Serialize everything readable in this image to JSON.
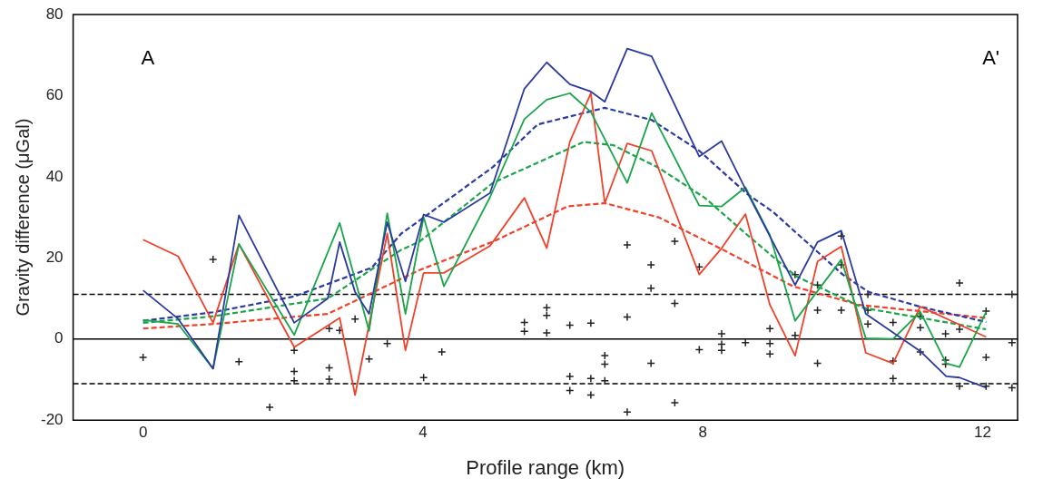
{
  "chart_data": {
    "type": "line",
    "xlabel": "Profile range (km)",
    "ylabel": "Gravity difference (μGal)",
    "annotations": [
      "A",
      "A'"
    ],
    "xlim": [
      -1,
      12.5
    ],
    "ylim": [
      -20,
      80
    ],
    "xticks": [
      0,
      4,
      8,
      12
    ],
    "yticks": [
      -20,
      0,
      20,
      40,
      60,
      80
    ],
    "grid": false,
    "legend": false,
    "ref_lines": [
      {
        "axis": "y",
        "value": 0,
        "color": "#000000",
        "line_style": "solid"
      },
      {
        "axis": "y",
        "value": 11,
        "color": "#000000",
        "line_style": "dashed"
      },
      {
        "axis": "y",
        "value": -11,
        "color": "#000000",
        "line_style": "dashed"
      }
    ],
    "series": [
      {
        "type": "line",
        "color": "#2b3aa0",
        "line_style": "solid",
        "marker": "none",
        "x": [
          0,
          0.5,
          1,
          1.37,
          2.16,
          2.64,
          2.81,
          3.03,
          3.23,
          3.49,
          3.75,
          4.01,
          4.3,
          4.96,
          5.45,
          5.77,
          6.1,
          6.4,
          6.6,
          6.92,
          7.27,
          7.95,
          8.27,
          8.61,
          9.32,
          9.64,
          9.98,
          10.33,
          11.11,
          11.48,
          11.67,
          12.05
        ],
        "values": [
          12,
          5,
          -7.3,
          30.5,
          4,
          10,
          23.9,
          11.6,
          6.2,
          28.8,
          14.2,
          30.7,
          28.8,
          36,
          61.7,
          68.2,
          62.8,
          61,
          58.5,
          71.6,
          69.7,
          45,
          48.8,
          37,
          13.3,
          23.9,
          26.7,
          6.2,
          -3,
          -9.2,
          -9.5,
          -12
        ]
      },
      {
        "type": "line",
        "color": "#1aa54a",
        "line_style": "solid",
        "marker": "none",
        "x": [
          0,
          0.5,
          1,
          1.37,
          2.16,
          2.81,
          3.23,
          3.49,
          3.75,
          4.01,
          4.3,
          4.96,
          5.45,
          5.77,
          6.1,
          6.4,
          6.92,
          7.27,
          7.95,
          8.27,
          8.61,
          8.96,
          9.32,
          9.98,
          10.33,
          10.72,
          11.11,
          11.48,
          11.67,
          12.05
        ],
        "values": [
          4.7,
          3.7,
          -7.3,
          23.4,
          1,
          28.6,
          2,
          31,
          6.2,
          30,
          13,
          35,
          54.2,
          59,
          60.6,
          56,
          38.5,
          55.7,
          32.9,
          32.7,
          37.4,
          25.6,
          4.5,
          19.6,
          0.2,
          0,
          6.7,
          -6,
          -6.9,
          6.7
        ]
      },
      {
        "type": "line",
        "color": "#f0412a",
        "line_style": "solid",
        "marker": "none",
        "x": [
          0,
          0.5,
          1,
          1.37,
          2.16,
          2.81,
          3.03,
          3.49,
          3.75,
          4.01,
          4.3,
          4.96,
          5.45,
          5.77,
          6.1,
          6.4,
          6.6,
          6.92,
          7.27,
          7.95,
          8.27,
          8.61,
          8.96,
          9.32,
          9.64,
          9.98,
          10.33,
          10.72,
          11.11,
          12.05
        ],
        "values": [
          24.5,
          20.4,
          4,
          23.4,
          -2,
          5.2,
          -13.8,
          26,
          -2.8,
          16.3,
          16.3,
          23,
          34.8,
          22.4,
          48.6,
          60.6,
          33.5,
          48.2,
          46.4,
          15.9,
          22.4,
          30.8,
          8.4,
          -4.1,
          19.1,
          22.8,
          -3.4,
          -6,
          8,
          0.5
        ]
      },
      {
        "type": "line",
        "color": "#2b3aa0",
        "line_style": "dashed",
        "marker": "none",
        "x": [
          0,
          1,
          2.16,
          3.27,
          3.69,
          3.95,
          5,
          5.64,
          6.6,
          7.27,
          7.95,
          8.64,
          9,
          10,
          10.37,
          11.1,
          12.05
        ],
        "values": [
          4.5,
          6.6,
          10.5,
          17.6,
          26,
          29.2,
          42.4,
          52.9,
          57,
          54,
          46.4,
          35.7,
          31.4,
          15.9,
          11.6,
          8,
          4.2
        ]
      },
      {
        "type": "line",
        "color": "#1aa54a",
        "line_style": "dashed",
        "marker": "none",
        "x": [
          0,
          1,
          2.64,
          3.69,
          3.95,
          5,
          6.3,
          6.72,
          7.37,
          8.03,
          8.64,
          9.33,
          10.29,
          12.05
        ],
        "values": [
          4,
          5.6,
          10,
          22,
          24,
          38.5,
          48.6,
          47.8,
          42.2,
          34.8,
          25.6,
          15.5,
          7.7,
          2.4
        ]
      },
      {
        "type": "line",
        "color": "#f0412a",
        "line_style": "dashed",
        "marker": "none",
        "x": [
          0,
          1,
          2.64,
          3.95,
          5,
          6.07,
          6.6,
          7.37,
          8.29,
          9.29,
          10.24,
          12.05
        ],
        "values": [
          2.6,
          3.7,
          6.2,
          17,
          24,
          32.7,
          33.5,
          30,
          22,
          13,
          8.4,
          5.2
        ]
      },
      {
        "type": "scatter",
        "color": "#222222",
        "marker": "cross",
        "x": [
          0,
          1,
          1.37,
          1.81,
          2.16,
          2.16,
          2.16,
          2.66,
          2.66,
          2.66,
          2.81,
          3.03,
          3.23,
          3.49,
          4.01,
          4.27,
          5.45,
          5.45,
          5.77,
          5.77,
          5.77,
          6.1,
          6.1,
          6.1,
          6.4,
          6.4,
          6.4,
          6.6,
          6.6,
          6.6,
          6.92,
          6.92,
          6.92,
          7.26,
          7.26,
          7.26,
          7.6,
          7.6,
          7.6,
          7.95,
          7.95,
          8.27,
          8.27,
          8.27,
          8.61,
          8.96,
          8.96,
          8.96,
          9.32,
          9.32,
          9.64,
          9.64,
          9.64,
          9.98,
          9.98,
          9.98,
          10.36,
          10.36,
          10.36,
          10.72,
          10.72,
          10.72,
          11.11,
          11.11,
          11.11,
          11.47,
          11.47,
          11.47,
          11.67,
          11.67,
          11.67,
          12.05,
          12.05,
          12.05,
          12.42,
          12.42,
          12.42
        ],
        "values": [
          -4.5,
          19.6,
          -5.6,
          -16.8,
          -2.8,
          -8,
          -10.3,
          2.6,
          -7.1,
          -9.9,
          2.1,
          4.9,
          -4.9,
          -1.1,
          -9.5,
          -3.2,
          4.1,
          1.9,
          7.7,
          5.8,
          1.5,
          3.4,
          -9.2,
          -12.7,
          3.9,
          -9.7,
          -13.8,
          -4.1,
          -6.2,
          -10.3,
          23.2,
          5.4,
          -18,
          18.3,
          12.5,
          -6,
          24.1,
          8.8,
          -15.7,
          17.8,
          -2.6,
          1.3,
          -1.3,
          -2.8,
          -0.9,
          2.6,
          -1.1,
          -3.7,
          15.9,
          0.9,
          13.3,
          7.1,
          -6,
          25.4,
          18.3,
          7.1,
          11,
          7.1,
          3.7,
          4.1,
          -5.4,
          -9.7,
          5.6,
          2.8,
          -3.2,
          1.3,
          -5.2,
          -6.2,
          13.8,
          2.4,
          -11.6,
          6.9,
          -4.5,
          -11.6,
          11,
          -0.9,
          -12
        ]
      }
    ]
  }
}
